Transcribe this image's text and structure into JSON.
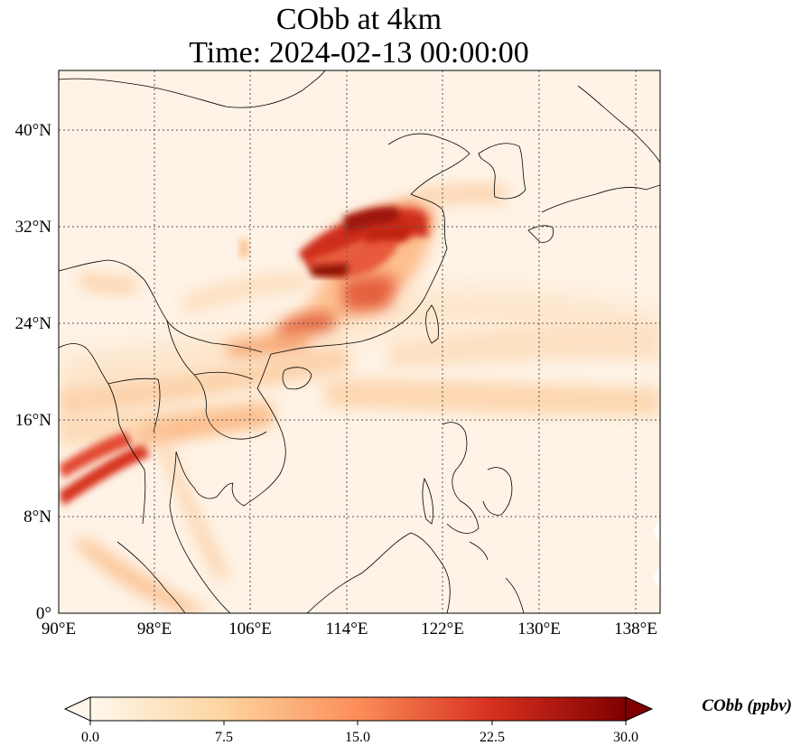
{
  "title_line1": "CObb at 4km",
  "title_line2": "Time: 2024-02-13 00:00:00",
  "map": {
    "projection": "PlateCarree",
    "lon_range": [
      90,
      139
    ],
    "lat_range": [
      0,
      44
    ],
    "gridlines": "dotted",
    "colormap": "OrRd",
    "xticks": [
      "90°E",
      "98°E",
      "106°E",
      "114°E",
      "122°E",
      "130°E",
      "138°E"
    ],
    "yticks": [
      "0°",
      "8°N",
      "16°N",
      "24°N",
      "32°N",
      "40°N"
    ]
  },
  "colorbar": {
    "label": "CObb (ppbv)",
    "ticks": [
      "0.0",
      "7.5",
      "15.0",
      "22.5",
      "30.0"
    ],
    "extend": "both",
    "colors": [
      "#fff7ec",
      "#fdd49e",
      "#fc8d59",
      "#d7301f",
      "#7f0000"
    ]
  }
}
